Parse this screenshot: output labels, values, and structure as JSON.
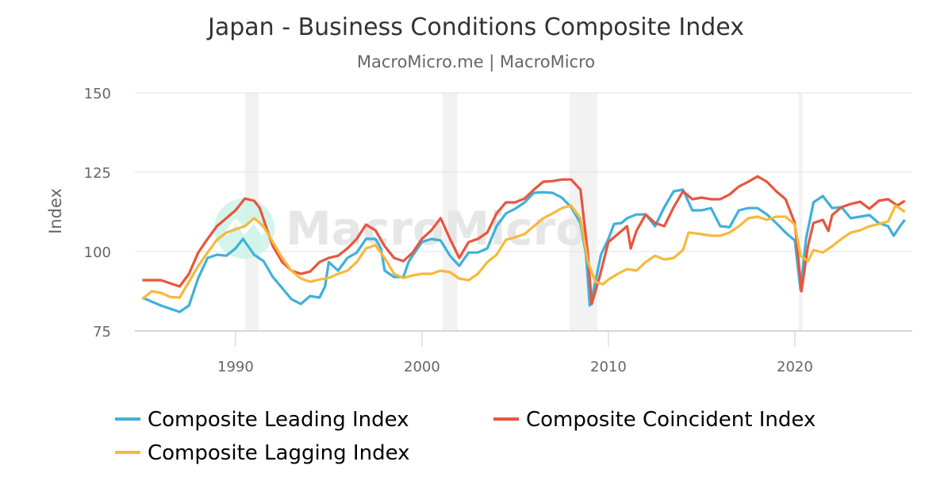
{
  "chart_data": {
    "type": "line",
    "title": "Japan - Business Conditions Composite Index",
    "subtitle": "MacroMicro.me | MacroMicro",
    "ylabel": "Index",
    "xlabel": "",
    "ylim": [
      75,
      150
    ],
    "xlim": [
      1984.6,
      2026.3
    ],
    "yticks": [
      75,
      100,
      125,
      150
    ],
    "xticks": [
      1990,
      2000,
      2010,
      2020
    ],
    "grid": "horizontal",
    "legend_placement": "bottom",
    "watermark": "MacroMicro",
    "recession_bands": [
      [
        1990.5,
        1991.25
      ],
      [
        2001.1,
        2001.9
      ],
      [
        2007.9,
        2009.4
      ],
      [
        2020.2,
        2020.4
      ]
    ],
    "series": [
      {
        "name": "Composite Leading Index",
        "color": "#3eb1da",
        "x": [
          1985,
          1986,
          1987,
          1987.5,
          1988,
          1988.5,
          1989,
          1989.5,
          1990,
          1990.4,
          1991,
          1991.5,
          1992,
          1993,
          1993.5,
          1994,
          1994.5,
          1994.8,
          1995,
          1995.5,
          1996,
          1996.5,
          1997,
          1997.5,
          1997.8,
          1998,
          1998.5,
          1999,
          1999.3,
          2000,
          2000.5,
          2001,
          2001.5,
          2002,
          2002.5,
          2003,
          2003.5,
          2004,
          2004.5,
          2005,
          2005.5,
          2006,
          2006.5,
          2007,
          2007.5,
          2008,
          2008.5,
          2008.8,
          2009,
          2009.3,
          2009.6,
          2010,
          2010.3,
          2010.7,
          2011,
          2011.5,
          2012,
          2012.5,
          2013,
          2013.5,
          2014,
          2014.5,
          2015,
          2015.5,
          2016,
          2016.5,
          2017,
          2017.5,
          2018,
          2018.5,
          2019,
          2019.5,
          2020,
          2020.3,
          2020.6,
          2021,
          2021.5,
          2022,
          2022.5,
          2023,
          2023.5,
          2024,
          2024.5,
          2025,
          2025.3,
          2025.7,
          2025.9
        ],
        "y": [
          85.5,
          83,
          81,
          83,
          91.7,
          98,
          99,
          98.7,
          101,
          104,
          99,
          97,
          92,
          85,
          83.5,
          86,
          85.5,
          89,
          96.7,
          94,
          98,
          99.7,
          104,
          104,
          101,
          94,
          92,
          92,
          97,
          103,
          104,
          103.5,
          98.7,
          95.5,
          99.7,
          99.7,
          101,
          108,
          112,
          113.5,
          115.5,
          118.5,
          118.7,
          118.5,
          117,
          114,
          109,
          99,
          83,
          90.5,
          99,
          104,
          108.7,
          109,
          110.5,
          111.7,
          111.7,
          108,
          114,
          119,
          119.5,
          113,
          113,
          113.7,
          108,
          107.7,
          113,
          113.7,
          113.7,
          111.7,
          109,
          106,
          103.5,
          88,
          104,
          115.5,
          117.5,
          113.7,
          114,
          110.5,
          111,
          111.5,
          109,
          108,
          105,
          108.5,
          110
        ]
      },
      {
        "name": "Composite Coincident Index",
        "color": "#e8553e",
        "x": [
          1985,
          1986,
          1987,
          1987.5,
          1988,
          1988.5,
          1989,
          1989.5,
          1990,
          1990.5,
          1991,
          1991.3,
          1991.7,
          1992,
          1992.5,
          1993,
          1993.5,
          1994,
          1994.5,
          1995,
          1995.5,
          1996,
          1996.5,
          1997,
          1997.5,
          1998,
          1998.5,
          1999,
          1999.5,
          2000,
          2000.5,
          2001,
          2001.5,
          2002,
          2002.5,
          2003,
          2003.5,
          2004,
          2004.5,
          2005,
          2005.5,
          2006,
          2006.5,
          2007,
          2007.5,
          2008,
          2008.5,
          2008.9,
          2009.1,
          2009.5,
          2010,
          2010.5,
          2011,
          2011.2,
          2011.5,
          2012,
          2012.5,
          2013,
          2013.5,
          2014,
          2014.5,
          2015,
          2015.5,
          2016,
          2016.5,
          2017,
          2017.5,
          2018,
          2018.5,
          2019,
          2019.5,
          2020,
          2020.35,
          2020.7,
          2021,
          2021.5,
          2021.8,
          2022,
          2022.5,
          2023,
          2023.5,
          2024,
          2024.5,
          2025,
          2025.5,
          2025.9
        ],
        "y": [
          91,
          91,
          89,
          93,
          99.7,
          104,
          108,
          110.5,
          113,
          116.7,
          116,
          113.7,
          106.7,
          101.7,
          96.7,
          94,
          93,
          93.7,
          96.7,
          98,
          98.7,
          101,
          104,
          108.5,
          106.7,
          101.7,
          98,
          97,
          99.7,
          104,
          106.7,
          110.5,
          104,
          98,
          103,
          104,
          106,
          112,
          115.5,
          115.5,
          116.7,
          119.5,
          122,
          122.2,
          122.7,
          122.7,
          119.5,
          99,
          83.5,
          91.5,
          103,
          105.5,
          108,
          101,
          106.5,
          111.7,
          109,
          108,
          114,
          119,
          116.5,
          117,
          116.5,
          116.5,
          118,
          120.5,
          122,
          123.7,
          122,
          119,
          116.5,
          109,
          87.5,
          101.7,
          109,
          110,
          106.5,
          111.5,
          114,
          115,
          115.7,
          113.5,
          116,
          116.5,
          114.5,
          116
        ]
      },
      {
        "name": "Composite Lagging Index",
        "color": "#f6b93b",
        "x": [
          1985,
          1985.5,
          1986,
          1986.5,
          1987,
          1987.5,
          1988,
          1988.5,
          1989,
          1989.5,
          1990,
          1990.5,
          1991,
          1991.5,
          1992,
          1992.5,
          1993,
          1993.5,
          1994,
          1994.5,
          1995,
          1995.5,
          1996,
          1996.5,
          1997,
          1997.5,
          1998,
          1998.5,
          1999,
          1999.5,
          2000,
          2000.5,
          2001,
          2001.5,
          2002,
          2002.5,
          2003,
          2003.5,
          2004,
          2004.5,
          2005,
          2005.5,
          2006,
          2006.5,
          2007,
          2007.5,
          2008,
          2008.5,
          2008.9,
          2009.3,
          2009.7,
          2010,
          2010.5,
          2011,
          2011.5,
          2012,
          2012.5,
          2013,
          2013.5,
          2014,
          2014.3,
          2015,
          2015.5,
          2016,
          2016.5,
          2017,
          2017.5,
          2018,
          2018.5,
          2019,
          2019.5,
          2020,
          2020.3,
          2020.7,
          2021,
          2021.5,
          2022,
          2022.5,
          2023,
          2023.5,
          2024,
          2024.5,
          2025,
          2025.4,
          2025.9
        ],
        "y": [
          85,
          87.5,
          87,
          85.7,
          85.5,
          90.5,
          95.5,
          99.7,
          103.7,
          106,
          107,
          108,
          110.5,
          108,
          103,
          98,
          94,
          91.5,
          90.5,
          91.2,
          91.7,
          93,
          94,
          96.7,
          101,
          102,
          98,
          93,
          91.7,
          92.5,
          93,
          93,
          94,
          93.5,
          91.5,
          91,
          93,
          96.7,
          99,
          103.7,
          104.5,
          105.5,
          108,
          110.5,
          112,
          113.7,
          114.5,
          110.5,
          96.7,
          90.5,
          89.7,
          91.2,
          93,
          94.5,
          94,
          96.7,
          98.7,
          97.5,
          98,
          100.5,
          106,
          105.5,
          105,
          105,
          106,
          108,
          110.5,
          111,
          110,
          111,
          111,
          108.5,
          98.7,
          97,
          100.5,
          99.7,
          101.7,
          104,
          106,
          106.7,
          108,
          108.7,
          109.5,
          114.5,
          112.5
        ]
      }
    ]
  }
}
